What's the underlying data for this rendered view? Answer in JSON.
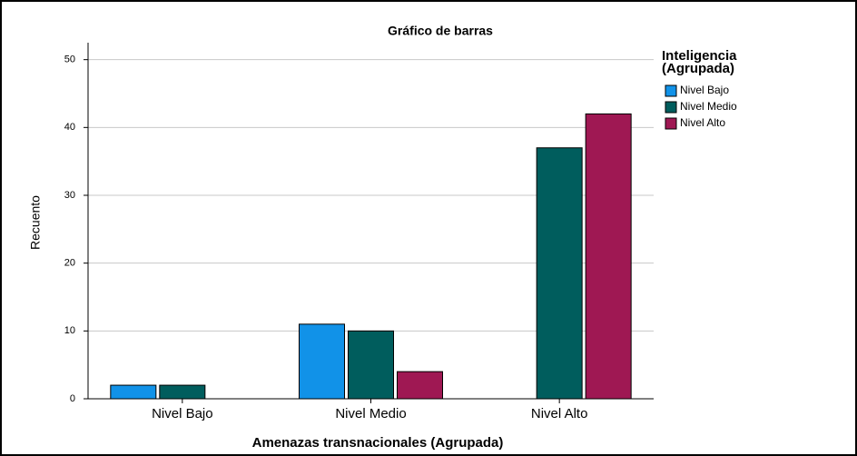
{
  "chart_data": {
    "type": "bar",
    "title": "Gráfico de barras",
    "x_label": "Amenazas transnacionales (Agrupada)",
    "y_label": "Recuento",
    "legend_title": [
      "Inteligencia",
      "(Agrupada)"
    ],
    "legend_position": "right",
    "categories": [
      "Nivel Bajo",
      "Nivel Medio",
      "Nivel Alto"
    ],
    "series": [
      {
        "name": "Nivel Bajo",
        "color": "#1192e8",
        "values": [
          2,
          11,
          0
        ]
      },
      {
        "name": "Nivel Medio",
        "color": "#005d5d",
        "values": [
          2,
          10,
          37
        ]
      },
      {
        "name": "Nivel Alto",
        "color": "#9f1853",
        "values": [
          0,
          4,
          42
        ]
      }
    ],
    "ylim": [
      0,
      52.5
    ],
    "yticks": [
      0,
      10,
      20,
      30,
      40,
      50
    ],
    "grid": true
  }
}
